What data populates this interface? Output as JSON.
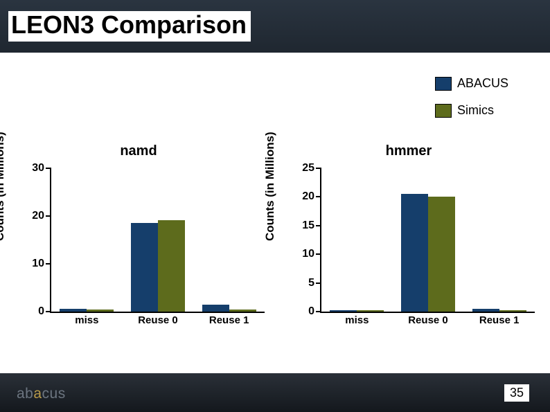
{
  "header": {
    "title": "LEON3 Comparison"
  },
  "legend": {
    "items": [
      {
        "label": "ABACUS",
        "color": "#153e6b"
      },
      {
        "label": "Simics",
        "color": "#5d6b1c"
      }
    ]
  },
  "charts": [
    {
      "title": "namd",
      "ylabel": "Counts (in Millions)",
      "type": "bar",
      "ylim": [
        0,
        30
      ],
      "yticks": [
        0,
        10,
        20,
        30
      ],
      "categories": [
        "miss",
        "Reuse 0",
        "Reuse 1"
      ],
      "series": [
        {
          "name": "ABACUS",
          "color": "#153e6b",
          "values": [
            0.6,
            18.5,
            1.5
          ]
        },
        {
          "name": "Simics",
          "color": "#5d6b1c",
          "values": [
            0.5,
            19.2,
            0.4
          ]
        }
      ],
      "bar_width": 0.38,
      "background_color": "#ffffff"
    },
    {
      "title": "hmmer",
      "ylabel": "Counts (in Millions)",
      "type": "bar",
      "ylim": [
        0,
        25
      ],
      "yticks": [
        0,
        5,
        10,
        15,
        20,
        25
      ],
      "categories": [
        "miss",
        "Reuse 0",
        "Reuse 1"
      ],
      "series": [
        {
          "name": "ABACUS",
          "color": "#153e6b",
          "values": [
            0.2,
            20.5,
            0.5
          ]
        },
        {
          "name": "Simics",
          "color": "#5d6b1c",
          "values": [
            0.2,
            20.0,
            0.2
          ]
        }
      ],
      "bar_width": 0.38,
      "background_color": "#ffffff"
    }
  ],
  "footer": {
    "page_number": "35",
    "logo_text": "abacus"
  }
}
